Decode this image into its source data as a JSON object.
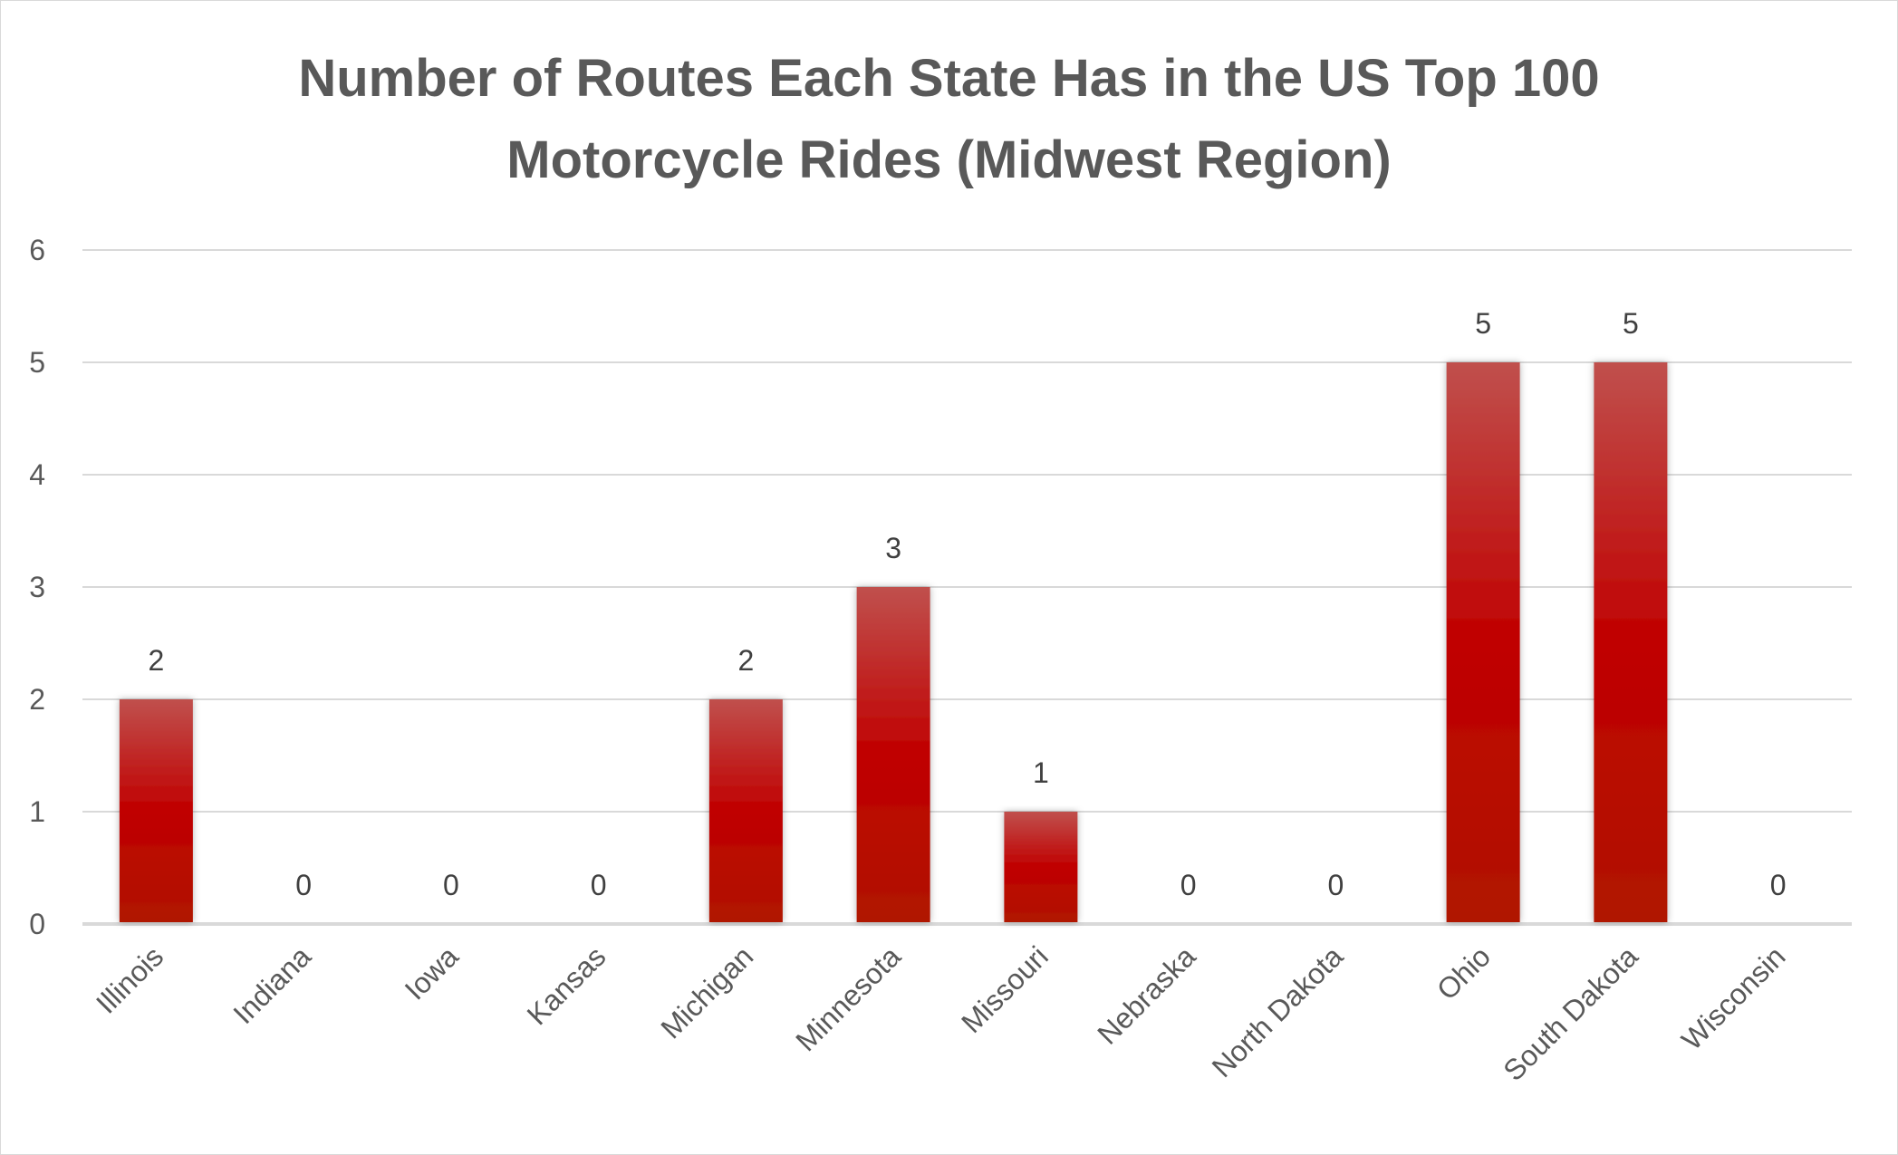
{
  "chart_data": {
    "type": "bar",
    "title_lines": [
      "Number of Routes Each State Has in the US Top 100",
      "Motorcycle Rides (Midwest Region)"
    ],
    "categories": [
      "Illinois",
      "Indiana",
      "Iowa",
      "Kansas",
      "Michigan",
      "Minnesota",
      "Missouri",
      "Nebraska",
      "North Dakota",
      "Ohio",
      "South Dakota",
      "Wisconsin"
    ],
    "values": [
      2,
      0,
      0,
      0,
      2,
      3,
      1,
      0,
      0,
      5,
      5,
      0
    ],
    "ylim": [
      0,
      6
    ],
    "yticks": [
      "0",
      "1",
      "2",
      "3",
      "4",
      "5",
      "6"
    ],
    "xlabel": "",
    "ylabel": "",
    "grid": true,
    "data_labels": true,
    "bar_color_top": "#c0504d",
    "bar_color_mid": "#c00000",
    "bar_color_bottom": "#b01500"
  }
}
